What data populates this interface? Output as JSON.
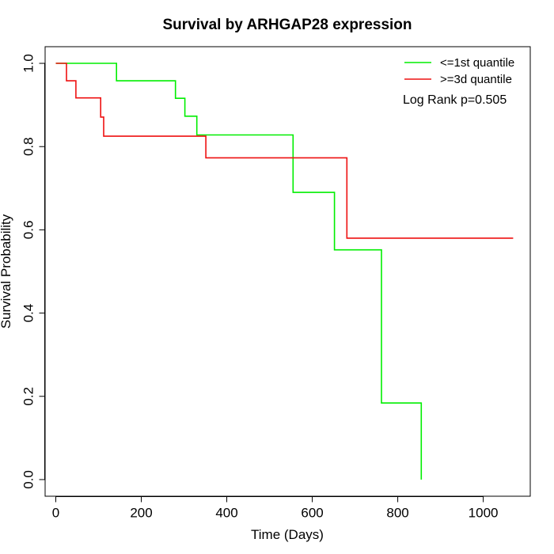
{
  "chart_data": {
    "type": "line",
    "subtype": "kaplan-meier step",
    "title": "Survival by ARHGAP28 expression",
    "xlabel": "Time (Days)",
    "ylabel": "Survival Probability",
    "xlim": [
      -25,
      1110
    ],
    "ylim": [
      -0.04,
      1.04
    ],
    "x_ticks": [
      0,
      200,
      400,
      600,
      800,
      1000
    ],
    "y_ticks": [
      0.0,
      0.2,
      0.4,
      0.6,
      0.8,
      1.0
    ],
    "x_tick_labels": [
      "0",
      "200",
      "400",
      "600",
      "800",
      "1000"
    ],
    "y_tick_labels": [
      "0.0",
      "0.2",
      "0.4",
      "0.6",
      "0.8",
      "1.0"
    ],
    "grid": false,
    "legend_position": "top-right",
    "series": [
      {
        "name": "<=1st quantile",
        "color": "#00ee00",
        "points": [
          [
            0,
            1.0
          ],
          [
            142,
            1.0
          ],
          [
            142,
            0.958
          ],
          [
            280,
            0.958
          ],
          [
            280,
            0.916
          ],
          [
            302,
            0.916
          ],
          [
            302,
            0.873
          ],
          [
            330,
            0.873
          ],
          [
            330,
            0.828
          ],
          [
            555,
            0.828
          ],
          [
            555,
            0.69
          ],
          [
            652,
            0.69
          ],
          [
            652,
            0.552
          ],
          [
            762,
            0.552
          ],
          [
            762,
            0.184
          ],
          [
            855,
            0.184
          ],
          [
            855,
            0.0
          ]
        ]
      },
      {
        "name": ">=3d quantile",
        "color": "#ee1111",
        "points": [
          [
            0,
            1.0
          ],
          [
            25,
            1.0
          ],
          [
            25,
            0.958
          ],
          [
            47,
            0.958
          ],
          [
            47,
            0.917
          ],
          [
            105,
            0.917
          ],
          [
            105,
            0.871
          ],
          [
            112,
            0.871
          ],
          [
            112,
            0.825
          ],
          [
            351,
            0.825
          ],
          [
            351,
            0.773
          ],
          [
            681,
            0.773
          ],
          [
            681,
            0.58
          ],
          [
            1070,
            0.58
          ]
        ]
      }
    ],
    "annotation": "Log Rank p=0.505"
  }
}
